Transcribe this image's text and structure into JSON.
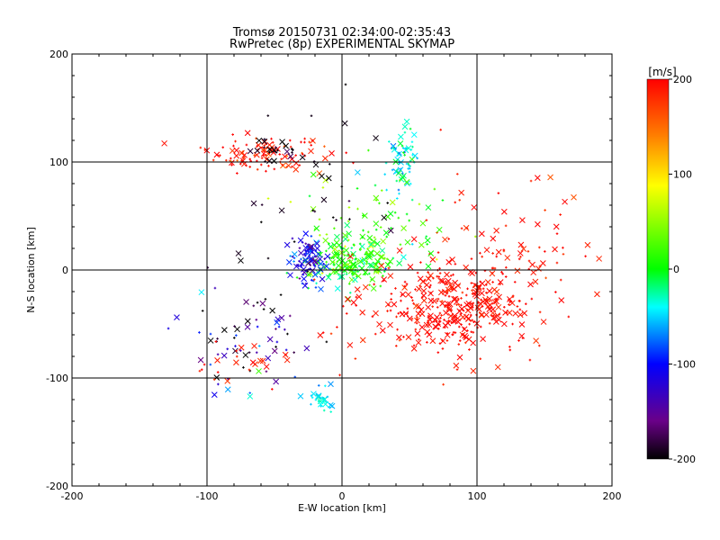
{
  "chart_data": {
    "type": "scatter",
    "title": "Tromsø 20150731 02:34:00-02:35:43",
    "subtitle": "RwPretec (8p) EXPERIMENTAL SKYMAP",
    "xlabel": "E-W location [km]",
    "ylabel": "N-S location [km]",
    "xlim": [
      -200,
      200
    ],
    "ylim": [
      -200,
      200
    ],
    "xticks": [
      -200,
      -100,
      0,
      100,
      200
    ],
    "yticks": [
      -200,
      -100,
      0,
      100,
      200
    ],
    "grid_lines_x": [
      -100,
      0,
      100
    ],
    "grid_lines_y": [
      -100,
      0,
      100
    ],
    "colorbar": {
      "label": "[m/s]",
      "range": [
        -200,
        200
      ],
      "ticks": [
        200,
        100,
        0,
        -100,
        -200
      ],
      "colormap": [
        "#000000",
        "#6a0088",
        "#0000ff",
        "#00ffff",
        "#00ff00",
        "#ffff00",
        "#ff8000",
        "#ff0000"
      ]
    },
    "markers": [
      "x",
      "+"
    ],
    "clusters": [
      {
        "name": "north-west-red",
        "cx": -55,
        "cy": 108,
        "sx": 22,
        "sy": 8,
        "n": 110,
        "v": 190,
        "vs": 20
      },
      {
        "name": "north-west-black",
        "cx": -50,
        "cy": 110,
        "sx": 15,
        "sy": 6,
        "n": 25,
        "v": -195,
        "vs": 10
      },
      {
        "name": "north-cyan",
        "cx": 45,
        "cy": 100,
        "sx": 6,
        "sy": 14,
        "n": 70,
        "v": -40,
        "vs": 20
      },
      {
        "name": "center-green",
        "cx": 5,
        "cy": 8,
        "sx": 18,
        "sy": 12,
        "n": 200,
        "v": 10,
        "vs": 25
      },
      {
        "name": "center-blue",
        "cx": -25,
        "cy": 10,
        "sx": 7,
        "sy": 10,
        "n": 90,
        "v": -110,
        "vs": 25
      },
      {
        "name": "south-east-red",
        "cx": 80,
        "cy": -35,
        "sx": 32,
        "sy": 22,
        "n": 380,
        "v": 195,
        "vs": 10
      },
      {
        "name": "east-red-sparse",
        "cx": 120,
        "cy": 20,
        "sx": 35,
        "sy": 35,
        "n": 80,
        "v": 190,
        "vs": 15
      },
      {
        "name": "south-cyan",
        "cx": -15,
        "cy": -120,
        "sx": 6,
        "sy": 6,
        "n": 30,
        "v": -45,
        "vs": 15
      },
      {
        "name": "south-west-mixed",
        "cx": -65,
        "cy": -60,
        "sx": 25,
        "sy": 30,
        "n": 70,
        "v": -150,
        "vs": 60
      },
      {
        "name": "south-west-red",
        "cx": -70,
        "cy": -85,
        "sx": 25,
        "sy": 15,
        "n": 25,
        "v": 190,
        "vs": 10
      },
      {
        "name": "mid-green-scatter",
        "cx": 25,
        "cy": 45,
        "sx": 30,
        "sy": 25,
        "n": 70,
        "v": 20,
        "vs": 30
      },
      {
        "name": "mid-black-scatter",
        "cx": -15,
        "cy": 50,
        "sx": 40,
        "sy": 50,
        "n": 30,
        "v": -195,
        "vs": 10
      }
    ]
  }
}
